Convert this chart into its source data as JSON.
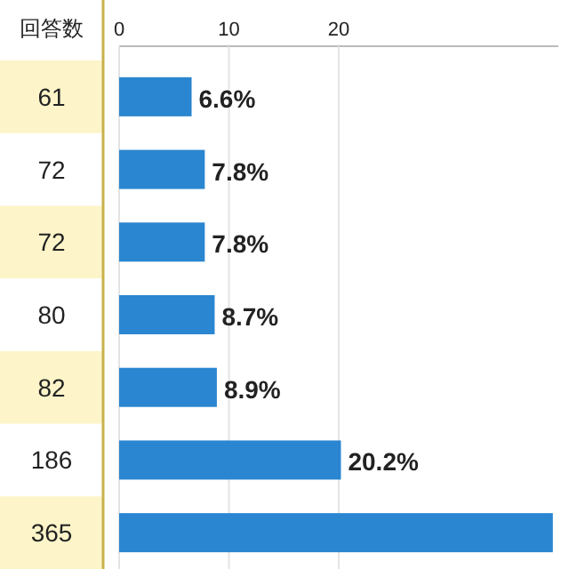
{
  "chart_data": {
    "type": "bar",
    "orientation": "horizontal",
    "ylabel": "回答数",
    "categories": [
      "61",
      "72",
      "72",
      "80",
      "82",
      "186",
      "365"
    ],
    "values": [
      6.6,
      7.8,
      7.8,
      8.7,
      8.9,
      20.2,
      39.5
    ],
    "value_labels": [
      "6.6%",
      "7.8%",
      "7.8%",
      "8.7%",
      "8.9%",
      "20.2%",
      null
    ],
    "color": "#2a86d0",
    "xlim": [
      0,
      40
    ],
    "xticks": [
      0,
      10,
      20
    ],
    "grid": "x"
  }
}
